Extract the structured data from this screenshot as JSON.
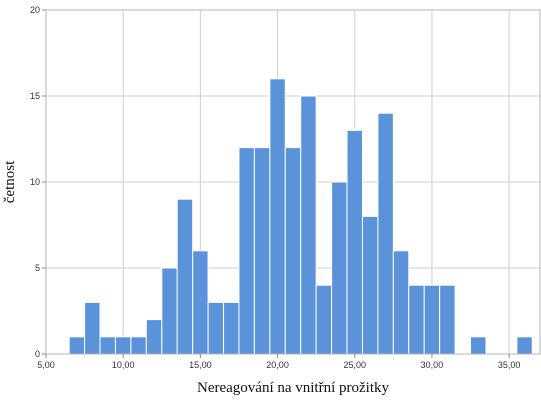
{
  "chart_data": {
    "type": "bar",
    "subtype": "histogram",
    "xlabel": "Nereagování na vnitřní prožitky",
    "ylabel": "četnost",
    "xlim": [
      5,
      37
    ],
    "ylim": [
      0,
      20
    ],
    "x_ticks": [
      "5,00",
      "10,00",
      "15,00",
      "20,00",
      "25,00",
      "30,00",
      "35,00"
    ],
    "x_tick_values": [
      5,
      10,
      15,
      20,
      25,
      30,
      35
    ],
    "y_ticks": [
      "0",
      "5",
      "10",
      "15",
      "20"
    ],
    "y_tick_values": [
      0,
      5,
      10,
      15,
      20
    ],
    "bin_width": 1,
    "bins": [
      {
        "start": 6.5,
        "count": 1
      },
      {
        "start": 7.5,
        "count": 3
      },
      {
        "start": 8.5,
        "count": 1
      },
      {
        "start": 9.5,
        "count": 1
      },
      {
        "start": 10.5,
        "count": 1
      },
      {
        "start": 11.5,
        "count": 2
      },
      {
        "start": 12.5,
        "count": 5
      },
      {
        "start": 13.5,
        "count": 9
      },
      {
        "start": 14.5,
        "count": 6
      },
      {
        "start": 15.5,
        "count": 3
      },
      {
        "start": 16.5,
        "count": 3
      },
      {
        "start": 17.5,
        "count": 12
      },
      {
        "start": 18.5,
        "count": 12
      },
      {
        "start": 19.5,
        "count": 16
      },
      {
        "start": 20.5,
        "count": 12
      },
      {
        "start": 21.5,
        "count": 15
      },
      {
        "start": 22.5,
        "count": 4
      },
      {
        "start": 23.5,
        "count": 10
      },
      {
        "start": 24.5,
        "count": 13
      },
      {
        "start": 25.5,
        "count": 8
      },
      {
        "start": 26.5,
        "count": 14
      },
      {
        "start": 27.5,
        "count": 6
      },
      {
        "start": 28.5,
        "count": 4
      },
      {
        "start": 29.5,
        "count": 4
      },
      {
        "start": 30.5,
        "count": 4
      },
      {
        "start": 32.5,
        "count": 1
      },
      {
        "start": 35.5,
        "count": 1
      }
    ],
    "grid": true,
    "colors": {
      "bar_fill": "#5b93db",
      "bar_edge": "#ffffff",
      "grid": "#cfcfcf",
      "frame": "#b5b5b5"
    }
  }
}
